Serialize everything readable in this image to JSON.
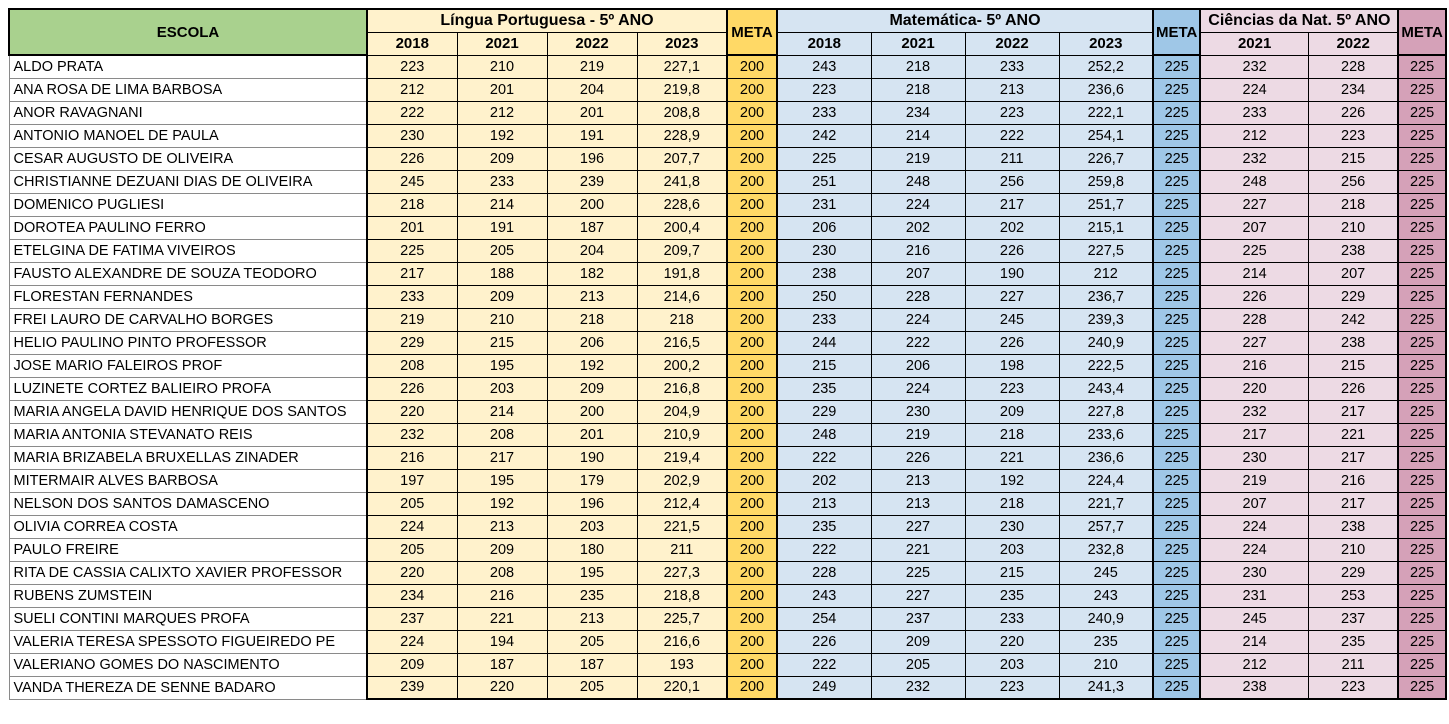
{
  "table": {
    "escola_header": "ESCOLA",
    "groups": [
      {
        "label": "Língua Portuguesa - 5º ANO",
        "years": [
          "2018",
          "2021",
          "2022",
          "2023"
        ],
        "meta": "META",
        "meta_value": "200"
      },
      {
        "label": "Matemática- 5º ANO",
        "years": [
          "2018",
          "2021",
          "2022",
          "2023"
        ],
        "meta": "META",
        "meta_value": "225"
      },
      {
        "label": "Ciências da Nat. 5º ANO",
        "years": [
          "2021",
          "2022"
        ],
        "meta": "META",
        "meta_value": "225"
      }
    ],
    "rows": [
      {
        "escola": "ALDO PRATA",
        "lp": [
          "223",
          "210",
          "219",
          "227,1"
        ],
        "lp_meta": "200",
        "mat": [
          "243",
          "218",
          "233",
          "252,2"
        ],
        "mat_meta": "225",
        "cie": [
          "232",
          "228"
        ],
        "cie_meta": "225"
      },
      {
        "escola": "ANA ROSA DE LIMA BARBOSA",
        "lp": [
          "212",
          "201",
          "204",
          "219,8"
        ],
        "lp_meta": "200",
        "mat": [
          "223",
          "218",
          "213",
          "236,6"
        ],
        "mat_meta": "225",
        "cie": [
          "224",
          "234"
        ],
        "cie_meta": "225"
      },
      {
        "escola": "ANOR RAVAGNANI",
        "lp": [
          "222",
          "212",
          "201",
          "208,8"
        ],
        "lp_meta": "200",
        "mat": [
          "233",
          "234",
          "223",
          "222,1"
        ],
        "mat_meta": "225",
        "cie": [
          "233",
          "226"
        ],
        "cie_meta": "225"
      },
      {
        "escola": "ANTONIO MANOEL DE PAULA",
        "lp": [
          "230",
          "192",
          "191",
          "228,9"
        ],
        "lp_meta": "200",
        "mat": [
          "242",
          "214",
          "222",
          "254,1"
        ],
        "mat_meta": "225",
        "cie": [
          "212",
          "223"
        ],
        "cie_meta": "225"
      },
      {
        "escola": "CESAR AUGUSTO DE OLIVEIRA",
        "lp": [
          "226",
          "209",
          "196",
          "207,7"
        ],
        "lp_meta": "200",
        "mat": [
          "225",
          "219",
          "211",
          "226,7"
        ],
        "mat_meta": "225",
        "cie": [
          "232",
          "215"
        ],
        "cie_meta": "225"
      },
      {
        "escola": "CHRISTIANNE DEZUANI DIAS DE OLIVEIRA",
        "lp": [
          "245",
          "233",
          "239",
          "241,8"
        ],
        "lp_meta": "200",
        "mat": [
          "251",
          "248",
          "256",
          "259,8"
        ],
        "mat_meta": "225",
        "cie": [
          "248",
          "256"
        ],
        "cie_meta": "225"
      },
      {
        "escola": "DOMENICO PUGLIESI",
        "lp": [
          "218",
          "214",
          "200",
          "228,6"
        ],
        "lp_meta": "200",
        "mat": [
          "231",
          "224",
          "217",
          "251,7"
        ],
        "mat_meta": "225",
        "cie": [
          "227",
          "218"
        ],
        "cie_meta": "225"
      },
      {
        "escola": "DOROTEA PAULINO FERRO",
        "lp": [
          "201",
          "191",
          "187",
          "200,4"
        ],
        "lp_meta": "200",
        "mat": [
          "206",
          "202",
          "202",
          "215,1"
        ],
        "mat_meta": "225",
        "cie": [
          "207",
          "210"
        ],
        "cie_meta": "225"
      },
      {
        "escola": "ETELGINA DE FATIMA VIVEIROS",
        "lp": [
          "225",
          "205",
          "204",
          "209,7"
        ],
        "lp_meta": "200",
        "mat": [
          "230",
          "216",
          "226",
          "227,5"
        ],
        "mat_meta": "225",
        "cie": [
          "225",
          "238"
        ],
        "cie_meta": "225"
      },
      {
        "escola": "FAUSTO ALEXANDRE DE SOUZA TEODORO",
        "lp": [
          "217",
          "188",
          "182",
          "191,8"
        ],
        "lp_meta": "200",
        "mat": [
          "238",
          "207",
          "190",
          "212"
        ],
        "mat_meta": "225",
        "cie": [
          "214",
          "207"
        ],
        "cie_meta": "225"
      },
      {
        "escola": "FLORESTAN FERNANDES",
        "lp": [
          "233",
          "209",
          "213",
          "214,6"
        ],
        "lp_meta": "200",
        "mat": [
          "250",
          "228",
          "227",
          "236,7"
        ],
        "mat_meta": "225",
        "cie": [
          "226",
          "229"
        ],
        "cie_meta": "225"
      },
      {
        "escola": "FREI LAURO DE CARVALHO BORGES",
        "lp": [
          "219",
          "210",
          "218",
          "218"
        ],
        "lp_meta": "200",
        "mat": [
          "233",
          "224",
          "245",
          "239,3"
        ],
        "mat_meta": "225",
        "cie": [
          "228",
          "242"
        ],
        "cie_meta": "225"
      },
      {
        "escola": "HELIO PAULINO PINTO PROFESSOR",
        "lp": [
          "229",
          "215",
          "206",
          "216,5"
        ],
        "lp_meta": "200",
        "mat": [
          "244",
          "222",
          "226",
          "240,9"
        ],
        "mat_meta": "225",
        "cie": [
          "227",
          "238"
        ],
        "cie_meta": "225"
      },
      {
        "escola": "JOSE MARIO FALEIROS PROF",
        "lp": [
          "208",
          "195",
          "192",
          "200,2"
        ],
        "lp_meta": "200",
        "mat": [
          "215",
          "206",
          "198",
          "222,5"
        ],
        "mat_meta": "225",
        "cie": [
          "216",
          "215"
        ],
        "cie_meta": "225"
      },
      {
        "escola": "LUZINETE CORTEZ BALIEIRO PROFA",
        "lp": [
          "226",
          "203",
          "209",
          "216,8"
        ],
        "lp_meta": "200",
        "mat": [
          "235",
          "224",
          "223",
          "243,4"
        ],
        "mat_meta": "225",
        "cie": [
          "220",
          "226"
        ],
        "cie_meta": "225"
      },
      {
        "escola": "MARIA ANGELA DAVID HENRIQUE DOS SANTOS",
        "lp": [
          "220",
          "214",
          "200",
          "204,9"
        ],
        "lp_meta": "200",
        "mat": [
          "229",
          "230",
          "209",
          "227,8"
        ],
        "mat_meta": "225",
        "cie": [
          "232",
          "217"
        ],
        "cie_meta": "225"
      },
      {
        "escola": "MARIA ANTONIA STEVANATO REIS",
        "lp": [
          "232",
          "208",
          "201",
          "210,9"
        ],
        "lp_meta": "200",
        "mat": [
          "248",
          "219",
          "218",
          "233,6"
        ],
        "mat_meta": "225",
        "cie": [
          "217",
          "221"
        ],
        "cie_meta": "225"
      },
      {
        "escola": "MARIA BRIZABELA BRUXELLAS ZINADER",
        "lp": [
          "216",
          "217",
          "190",
          "219,4"
        ],
        "lp_meta": "200",
        "mat": [
          "222",
          "226",
          "221",
          "236,6"
        ],
        "mat_meta": "225",
        "cie": [
          "230",
          "217"
        ],
        "cie_meta": "225"
      },
      {
        "escola": "MITERMAIR ALVES BARBOSA",
        "lp": [
          "197",
          "195",
          "179",
          "202,9"
        ],
        "lp_meta": "200",
        "mat": [
          "202",
          "213",
          "192",
          "224,4"
        ],
        "mat_meta": "225",
        "cie": [
          "219",
          "216"
        ],
        "cie_meta": "225"
      },
      {
        "escola": "NELSON DOS SANTOS DAMASCENO",
        "lp": [
          "205",
          "192",
          "196",
          "212,4"
        ],
        "lp_meta": "200",
        "mat": [
          "213",
          "213",
          "218",
          "221,7"
        ],
        "mat_meta": "225",
        "cie": [
          "207",
          "217"
        ],
        "cie_meta": "225"
      },
      {
        "escola": "OLIVIA CORREA COSTA",
        "lp": [
          "224",
          "213",
          "203",
          "221,5"
        ],
        "lp_meta": "200",
        "mat": [
          "235",
          "227",
          "230",
          "257,7"
        ],
        "mat_meta": "225",
        "cie": [
          "224",
          "238"
        ],
        "cie_meta": "225"
      },
      {
        "escola": "PAULO FREIRE",
        "lp": [
          "205",
          "209",
          "180",
          "211"
        ],
        "lp_meta": "200",
        "mat": [
          "222",
          "221",
          "203",
          "232,8"
        ],
        "mat_meta": "225",
        "cie": [
          "224",
          "210"
        ],
        "cie_meta": "225"
      },
      {
        "escola": "RITA DE CASSIA CALIXTO XAVIER PROFESSOR",
        "lp": [
          "220",
          "208",
          "195",
          "227,3"
        ],
        "lp_meta": "200",
        "mat": [
          "228",
          "225",
          "215",
          "245"
        ],
        "mat_meta": "225",
        "cie": [
          "230",
          "229"
        ],
        "cie_meta": "225"
      },
      {
        "escola": "RUBENS ZUMSTEIN",
        "lp": [
          "234",
          "216",
          "235",
          "218,8"
        ],
        "lp_meta": "200",
        "mat": [
          "243",
          "227",
          "235",
          "243"
        ],
        "mat_meta": "225",
        "cie": [
          "231",
          "253"
        ],
        "cie_meta": "225"
      },
      {
        "escola": "SUELI CONTINI MARQUES PROFA",
        "lp": [
          "237",
          "221",
          "213",
          "225,7"
        ],
        "lp_meta": "200",
        "mat": [
          "254",
          "237",
          "233",
          "240,9"
        ],
        "mat_meta": "225",
        "cie": [
          "245",
          "237"
        ],
        "cie_meta": "225"
      },
      {
        "escola": "VALERIA TERESA SPESSOTO FIGUEIREDO PE",
        "lp": [
          "224",
          "194",
          "205",
          "216,6"
        ],
        "lp_meta": "200",
        "mat": [
          "226",
          "209",
          "220",
          "235"
        ],
        "mat_meta": "225",
        "cie": [
          "214",
          "235"
        ],
        "cie_meta": "225"
      },
      {
        "escola": "VALERIANO GOMES DO NASCIMENTO",
        "lp": [
          "209",
          "187",
          "187",
          "193"
        ],
        "lp_meta": "200",
        "mat": [
          "222",
          "205",
          "203",
          "210"
        ],
        "mat_meta": "225",
        "cie": [
          "212",
          "211"
        ],
        "cie_meta": "225"
      },
      {
        "escola": "VANDA THEREZA DE SENNE BADARO",
        "lp": [
          "239",
          "220",
          "205",
          "220,1"
        ],
        "lp_meta": "200",
        "mat": [
          "249",
          "232",
          "223",
          "241,3"
        ],
        "mat_meta": "225",
        "cie": [
          "238",
          "223"
        ],
        "cie_meta": "225"
      }
    ]
  },
  "colors": {
    "escola_header_bg": "#a9d18e",
    "lp_bg": "#fff2cc",
    "lp_meta_bg": "#ffd966",
    "mat_bg": "#d6e4f2",
    "mat_meta_bg": "#9fc7e7",
    "cie_bg": "#eddae4",
    "cie_meta_bg": "#d5a1b8",
    "border": "#000000"
  }
}
